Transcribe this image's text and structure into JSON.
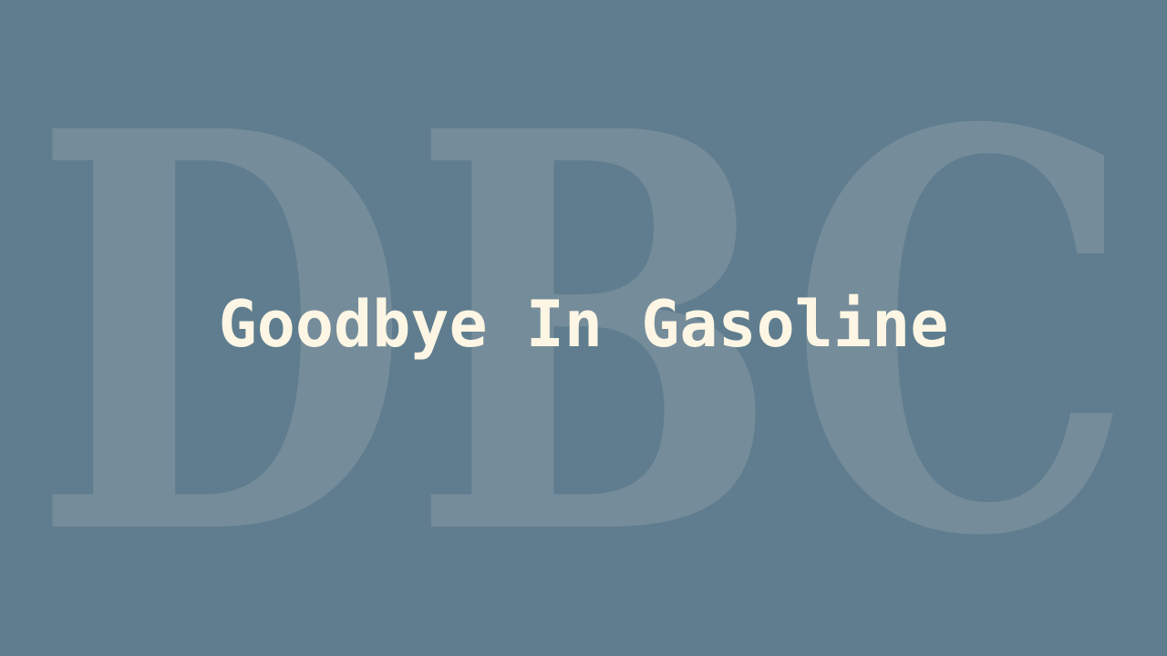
{
  "slide": {
    "title": "Goodbye In Gasoline",
    "watermark": "DBC"
  },
  "colors": {
    "background": "#5f7d8e",
    "watermark": "#758c9a",
    "title": "#fdf6e4"
  }
}
